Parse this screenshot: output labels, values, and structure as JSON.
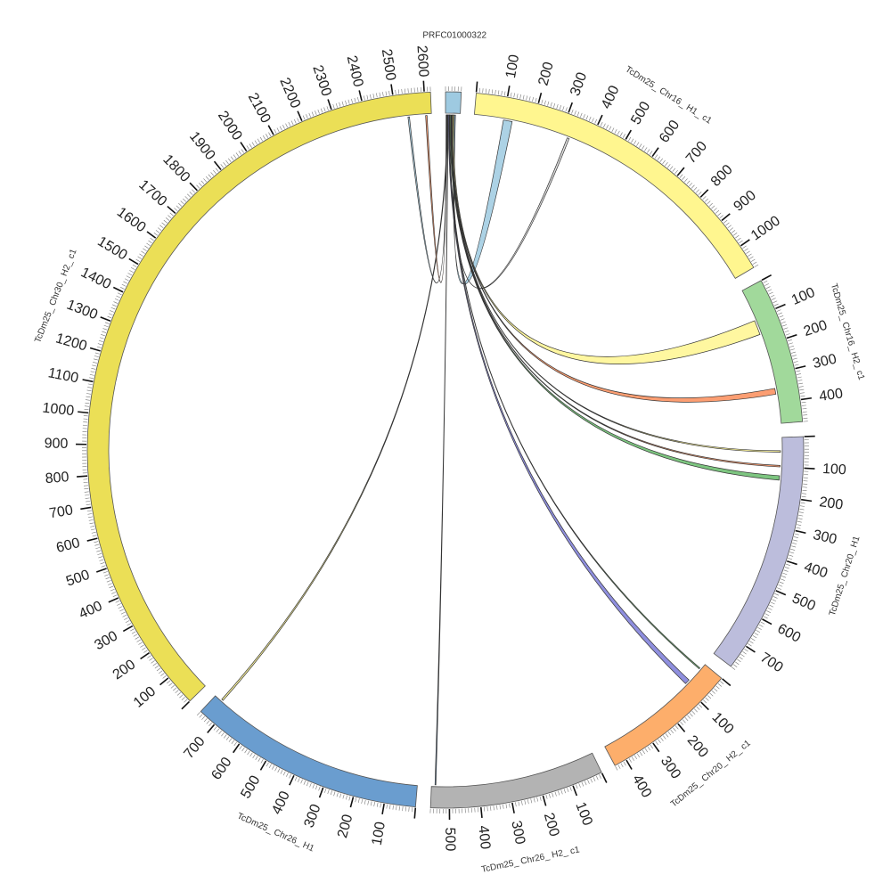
{
  "diagram": {
    "type": "circos",
    "tick_step": 100,
    "minor_tick_step": 10,
    "segments": [
      {
        "id": "PRFC01000322",
        "label": "PRFC01000322",
        "length": 50,
        "color": "#9ecae1",
        "tick_labels": false
      },
      {
        "id": "Chr16_H1",
        "label": "TcDm25_ Chr16_ H1_ c1",
        "length": 1080,
        "color": "#fff68f",
        "tick_labels": true
      },
      {
        "id": "Chr16_H2",
        "label": "TcDm25_ Chr16_ H2_ c1",
        "length": 470,
        "color": "#a1d99b",
        "tick_labels": true
      },
      {
        "id": "Chr20_H1",
        "label": "TcDm25_ Chr20_ H1",
        "length": 780,
        "color": "#bcbddc",
        "tick_labels": true
      },
      {
        "id": "Chr20_H2",
        "label": "TcDm25_ Chr20_ H2_ c1",
        "length": 440,
        "color": "#fdae6b",
        "tick_labels": true
      },
      {
        "id": "Chr26_H2",
        "label": "TcDm25_ Chr26_ H2_ c1",
        "length": 560,
        "color": "#b3b3b3",
        "tick_labels": true
      },
      {
        "id": "Chr26_H1",
        "label": "TcDm25_ Chr26_ H1",
        "length": 760,
        "color": "#6a9dcf",
        "tick_labels": true
      },
      {
        "id": "Chr30_H2",
        "label": "TcDm25_ Chr30_ H2_ c1",
        "length": 2620,
        "color": "#ebdf56",
        "tick_labels": true
      }
    ],
    "links": [
      {
        "source": "PRFC01000322",
        "s_start": 30,
        "s_end": 34,
        "target": "Chr16_H1",
        "t_start": 100,
        "t_end": 130,
        "color": "#9ecae1"
      },
      {
        "source": "PRFC01000322",
        "s_start": 26,
        "s_end": 27,
        "target": "Chr16_H1",
        "t_start": 325,
        "t_end": 332,
        "color": "#dddddd"
      },
      {
        "source": "PRFC01000322",
        "s_start": 23,
        "s_end": 28,
        "target": "Chr16_H2",
        "t_start": 110,
        "t_end": 160,
        "color": "#fff68f"
      },
      {
        "source": "PRFC01000322",
        "s_start": 22,
        "s_end": 24,
        "target": "Chr16_H2",
        "t_start": 350,
        "t_end": 370,
        "color": "#fc8d59"
      },
      {
        "source": "PRFC01000322",
        "s_start": 20,
        "s_end": 21,
        "target": "Chr20_H1",
        "t_start": 45,
        "t_end": 50,
        "color": "#fff68f"
      },
      {
        "source": "PRFC01000322",
        "s_start": 18,
        "s_end": 19,
        "target": "Chr20_H1",
        "t_start": 95,
        "t_end": 100,
        "color": "#fc8d59"
      },
      {
        "source": "PRFC01000322",
        "s_start": 15,
        "s_end": 18,
        "target": "Chr20_H1",
        "t_start": 130,
        "t_end": 145,
        "color": "#66bb6a"
      },
      {
        "source": "PRFC01000322",
        "s_start": 13,
        "s_end": 14,
        "target": "Chr20_H2",
        "t_start": 20,
        "t_end": 24,
        "color": "#66bb6a"
      },
      {
        "source": "PRFC01000322",
        "s_start": 10,
        "s_end": 13,
        "target": "Chr20_H2",
        "t_start": 75,
        "t_end": 92,
        "color": "#7b7bd8"
      },
      {
        "source": "PRFC01000322",
        "s_start": 8,
        "s_end": 9,
        "target": "Chr26_H2",
        "t_start": 545,
        "t_end": 548,
        "color": "#4a7fb5"
      },
      {
        "source": "PRFC01000322",
        "s_start": 6,
        "s_end": 8,
        "target": "Chr26_H1",
        "t_start": 730,
        "t_end": 736,
        "color": "#fff68f"
      },
      {
        "source": "PRFC01000322",
        "s_start": 4,
        "s_end": 5,
        "target": "Chr30_H2",
        "t_start": 2540,
        "t_end": 2545,
        "color": "#9ecae1"
      },
      {
        "source": "PRFC01000322",
        "s_start": 2,
        "s_end": 3,
        "target": "Chr30_H2",
        "t_start": 2600,
        "t_end": 2605,
        "color": "#fc8d59"
      }
    ]
  }
}
